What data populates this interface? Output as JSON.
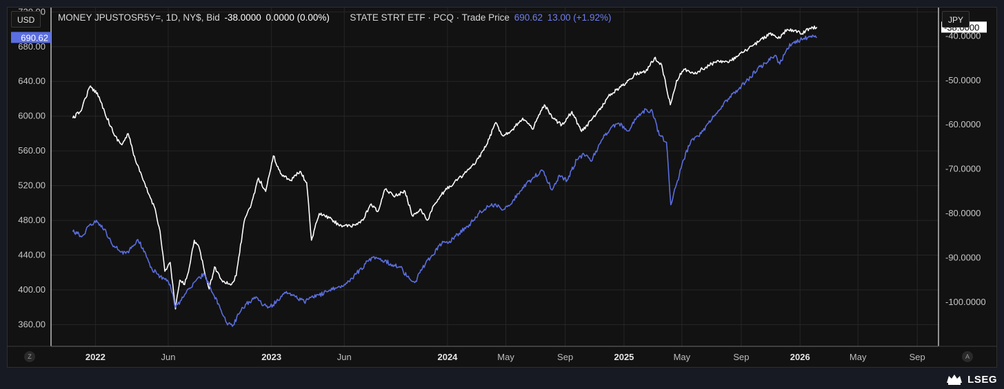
{
  "left_unit": "USD",
  "right_unit": "JPY",
  "header": {
    "series1_label": "MONEY JPUSTOSR5Y=, 1D, NY$, Bid",
    "series1_value": "-38.0000",
    "series1_change": "0.0000 (0.00%)",
    "series2_label": "STATE STRT ETF · PCQ · Trade Price",
    "series2_value": "690.62",
    "series2_change": "13.00 (+1.92%)"
  },
  "corner_left": "Z",
  "corner_right": "A",
  "brand": "LSEG",
  "colors": {
    "background": "#121212",
    "grid": "#262626",
    "series_white": "#ffffff",
    "series_blue": "#5b6ee0"
  },
  "chart_data": {
    "type": "line",
    "x_axis": {
      "type": "date",
      "range": [
        "2021-10-01",
        "2026-10-15"
      ],
      "ticks": [
        {
          "date": "2022-01-01",
          "label": "2022",
          "bold": true
        },
        {
          "date": "2022-06-01",
          "label": "Jun",
          "bold": false
        },
        {
          "date": "2023-01-01",
          "label": "2023",
          "bold": true
        },
        {
          "date": "2023-06-01",
          "label": "Jun",
          "bold": false
        },
        {
          "date": "2024-01-01",
          "label": "2024",
          "bold": true
        },
        {
          "date": "2024-05-01",
          "label": "May",
          "bold": false
        },
        {
          "date": "2024-09-01",
          "label": "Sep",
          "bold": false
        },
        {
          "date": "2025-01-01",
          "label": "2025",
          "bold": true
        },
        {
          "date": "2025-05-01",
          "label": "May",
          "bold": false
        },
        {
          "date": "2025-09-01",
          "label": "Sep",
          "bold": false
        },
        {
          "date": "2026-01-01",
          "label": "2026",
          "bold": true
        },
        {
          "date": "2026-05-01",
          "label": "May",
          "bold": false
        },
        {
          "date": "2026-09-01",
          "label": "Sep",
          "bold": false
        }
      ]
    },
    "y_left": {
      "range": [
        335,
        725
      ],
      "ticks": [
        "720.00",
        "680.00",
        "640.00",
        "600.00",
        "560.00",
        "520.00",
        "480.00",
        "440.00",
        "400.00",
        "360.00"
      ],
      "current_label": "690.62",
      "current_value": 690.62
    },
    "y_right": {
      "range": [
        -109.9,
        -33.6
      ],
      "ticks": [
        "-40.0000",
        "-50.0000",
        "-60.0000",
        "-70.0000",
        "-80.0000",
        "-90.0000",
        "-100.0000"
      ],
      "current_label": "-38.0000",
      "current_value": -38.0
    },
    "series": [
      {
        "axis": "right",
        "color": "#ffffff",
        "points": [
          [
            "2021-11-15",
            -58.5
          ],
          [
            "2021-12-01",
            -57.0
          ],
          [
            "2021-12-20",
            -51.5
          ],
          [
            "2022-01-05",
            -52.8
          ],
          [
            "2022-01-20",
            -57.0
          ],
          [
            "2022-02-10",
            -62.5
          ],
          [
            "2022-02-25",
            -64.5
          ],
          [
            "2022-03-10",
            -62.0
          ],
          [
            "2022-03-25",
            -68.0
          ],
          [
            "2022-04-10",
            -72.5
          ],
          [
            "2022-04-25",
            -76.5
          ],
          [
            "2022-05-05",
            -79.0
          ],
          [
            "2022-05-15",
            -84.0
          ],
          [
            "2022-05-25",
            -93.0
          ],
          [
            "2022-06-05",
            -91.0
          ],
          [
            "2022-06-16",
            -101.5
          ],
          [
            "2022-06-25",
            -95.0
          ],
          [
            "2022-07-05",
            -96.0
          ],
          [
            "2022-07-15",
            -92.0
          ],
          [
            "2022-07-25",
            -86.0
          ],
          [
            "2022-08-05",
            -88.0
          ],
          [
            "2022-08-15",
            -93.0
          ],
          [
            "2022-08-25",
            -97.0
          ],
          [
            "2022-09-05",
            -92.0
          ],
          [
            "2022-09-20",
            -95.0
          ],
          [
            "2022-10-10",
            -96.0
          ],
          [
            "2022-10-20",
            -94.0
          ],
          [
            "2022-11-05",
            -82.0
          ],
          [
            "2022-11-20",
            -78.0
          ],
          [
            "2022-12-05",
            -72.0
          ],
          [
            "2022-12-20",
            -75.0
          ],
          [
            "2023-01-05",
            -67.0
          ],
          [
            "2023-01-20",
            -71.0
          ],
          [
            "2023-02-10",
            -72.5
          ],
          [
            "2023-03-01",
            -70.5
          ],
          [
            "2023-03-15",
            -73.0
          ],
          [
            "2023-03-25",
            -86.0
          ],
          [
            "2023-04-10",
            -80.0
          ],
          [
            "2023-05-01",
            -81.0
          ],
          [
            "2023-05-20",
            -82.5
          ],
          [
            "2023-06-15",
            -83.0
          ],
          [
            "2023-07-10",
            -81.5
          ],
          [
            "2023-07-25",
            -78.0
          ],
          [
            "2023-08-10",
            -79.5
          ],
          [
            "2023-08-25",
            -74.5
          ],
          [
            "2023-09-15",
            -76.0
          ],
          [
            "2023-10-05",
            -75.0
          ],
          [
            "2023-10-20",
            -80.5
          ],
          [
            "2023-11-05",
            -79.0
          ],
          [
            "2023-11-20",
            -81.5
          ],
          [
            "2023-12-05",
            -78.0
          ],
          [
            "2023-12-25",
            -75.0
          ],
          [
            "2024-01-15",
            -73.0
          ],
          [
            "2024-02-05",
            -71.0
          ],
          [
            "2024-02-25",
            -69.0
          ],
          [
            "2024-03-20",
            -65.0
          ],
          [
            "2024-04-10",
            -59.5
          ],
          [
            "2024-04-25",
            -62.5
          ],
          [
            "2024-05-15",
            -61.0
          ],
          [
            "2024-06-05",
            -58.5
          ],
          [
            "2024-06-25",
            -61.0
          ],
          [
            "2024-07-20",
            -55.5
          ],
          [
            "2024-08-05",
            -58.5
          ],
          [
            "2024-08-25",
            -60.0
          ],
          [
            "2024-09-15",
            -57.0
          ],
          [
            "2024-10-05",
            -61.5
          ],
          [
            "2024-10-25",
            -59.0
          ],
          [
            "2024-11-15",
            -56.0
          ],
          [
            "2024-12-05",
            -53.0
          ],
          [
            "2024-12-25",
            -51.5
          ],
          [
            "2025-01-10",
            -50.0
          ],
          [
            "2025-01-25",
            -48.5
          ],
          [
            "2025-02-15",
            -48.0
          ],
          [
            "2025-03-05",
            -45.0
          ],
          [
            "2025-03-20",
            -46.5
          ],
          [
            "2025-04-07",
            -55.5
          ],
          [
            "2025-04-20",
            -50.0
          ],
          [
            "2025-05-05",
            -47.5
          ],
          [
            "2025-05-25",
            -48.5
          ],
          [
            "2025-06-20",
            -47.0
          ],
          [
            "2025-07-15",
            -45.5
          ],
          [
            "2025-08-05",
            -46.0
          ],
          [
            "2025-08-25",
            -44.5
          ],
          [
            "2025-09-15",
            -43.0
          ],
          [
            "2025-10-10",
            -41.0
          ],
          [
            "2025-10-30",
            -39.5
          ],
          [
            "2025-11-20",
            -40.5
          ],
          [
            "2025-12-05",
            -38.5
          ],
          [
            "2025-12-20",
            -38.8
          ],
          [
            "2026-01-05",
            -39.5
          ],
          [
            "2026-01-20",
            -38.3
          ],
          [
            "2026-02-05",
            -38.0
          ]
        ]
      },
      {
        "axis": "left",
        "color": "#5b6ee0",
        "points": [
          [
            "2021-11-15",
            467
          ],
          [
            "2021-12-05",
            462
          ],
          [
            "2021-12-20",
            475
          ],
          [
            "2022-01-05",
            478
          ],
          [
            "2022-01-20",
            470
          ],
          [
            "2022-02-05",
            452
          ],
          [
            "2022-02-20",
            445
          ],
          [
            "2022-03-05",
            442
          ],
          [
            "2022-03-20",
            450
          ],
          [
            "2022-03-30",
            458
          ],
          [
            "2022-04-15",
            442
          ],
          [
            "2022-04-25",
            426
          ],
          [
            "2022-05-10",
            418
          ],
          [
            "2022-05-25",
            412
          ],
          [
            "2022-06-05",
            406
          ],
          [
            "2022-06-16",
            380
          ],
          [
            "2022-06-28",
            388
          ],
          [
            "2022-07-15",
            402
          ],
          [
            "2022-07-30",
            412
          ],
          [
            "2022-08-15",
            418
          ],
          [
            "2022-08-30",
            398
          ],
          [
            "2022-09-15",
            382
          ],
          [
            "2022-09-30",
            362
          ],
          [
            "2022-10-12",
            358
          ],
          [
            "2022-10-25",
            372
          ],
          [
            "2022-11-10",
            384
          ],
          [
            "2022-11-30",
            392
          ],
          [
            "2022-12-15",
            382
          ],
          [
            "2022-12-28",
            380
          ],
          [
            "2023-01-15",
            388
          ],
          [
            "2023-02-01",
            398
          ],
          [
            "2023-02-20",
            392
          ],
          [
            "2023-03-10",
            386
          ],
          [
            "2023-03-25",
            392
          ],
          [
            "2023-04-10",
            394
          ],
          [
            "2023-04-28",
            398
          ],
          [
            "2023-05-15",
            402
          ],
          [
            "2023-06-05",
            408
          ],
          [
            "2023-06-25",
            418
          ],
          [
            "2023-07-15",
            430
          ],
          [
            "2023-07-31",
            438
          ],
          [
            "2023-08-15",
            436
          ],
          [
            "2023-09-05",
            430
          ],
          [
            "2023-09-25",
            426
          ],
          [
            "2023-10-10",
            415
          ],
          [
            "2023-10-27",
            410
          ],
          [
            "2023-11-10",
            425
          ],
          [
            "2023-11-30",
            440
          ],
          [
            "2023-12-20",
            453
          ],
          [
            "2024-01-05",
            456
          ],
          [
            "2024-01-25",
            465
          ],
          [
            "2024-02-15",
            475
          ],
          [
            "2024-03-10",
            490
          ],
          [
            "2024-03-25",
            496
          ],
          [
            "2024-04-15",
            498
          ],
          [
            "2024-04-25",
            492
          ],
          [
            "2024-05-15",
            502
          ],
          [
            "2024-06-05",
            518
          ],
          [
            "2024-06-25",
            528
          ],
          [
            "2024-07-15",
            538
          ],
          [
            "2024-08-05",
            515
          ],
          [
            "2024-08-20",
            532
          ],
          [
            "2024-09-05",
            526
          ],
          [
            "2024-09-25",
            550
          ],
          [
            "2024-10-10",
            556
          ],
          [
            "2024-10-25",
            548
          ],
          [
            "2024-11-15",
            572
          ],
          [
            "2024-12-05",
            587
          ],
          [
            "2024-12-20",
            592
          ],
          [
            "2025-01-10",
            583
          ],
          [
            "2025-01-25",
            596
          ],
          [
            "2025-02-15",
            608
          ],
          [
            "2025-03-01",
            605
          ],
          [
            "2025-03-15",
            578
          ],
          [
            "2025-03-30",
            570
          ],
          [
            "2025-04-08",
            498
          ],
          [
            "2025-04-20",
            522
          ],
          [
            "2025-05-05",
            550
          ],
          [
            "2025-05-20",
            572
          ],
          [
            "2025-06-10",
            580
          ],
          [
            "2025-06-25",
            592
          ],
          [
            "2025-07-15",
            606
          ],
          [
            "2025-08-05",
            620
          ],
          [
            "2025-08-25",
            630
          ],
          [
            "2025-09-15",
            642
          ],
          [
            "2025-10-05",
            655
          ],
          [
            "2025-10-25",
            662
          ],
          [
            "2025-11-10",
            670
          ],
          [
            "2025-11-20",
            660
          ],
          [
            "2025-12-05",
            678
          ],
          [
            "2025-12-20",
            686
          ],
          [
            "2026-01-05",
            688
          ],
          [
            "2026-01-20",
            692
          ],
          [
            "2026-02-05",
            690.62
          ]
        ]
      }
    ]
  }
}
